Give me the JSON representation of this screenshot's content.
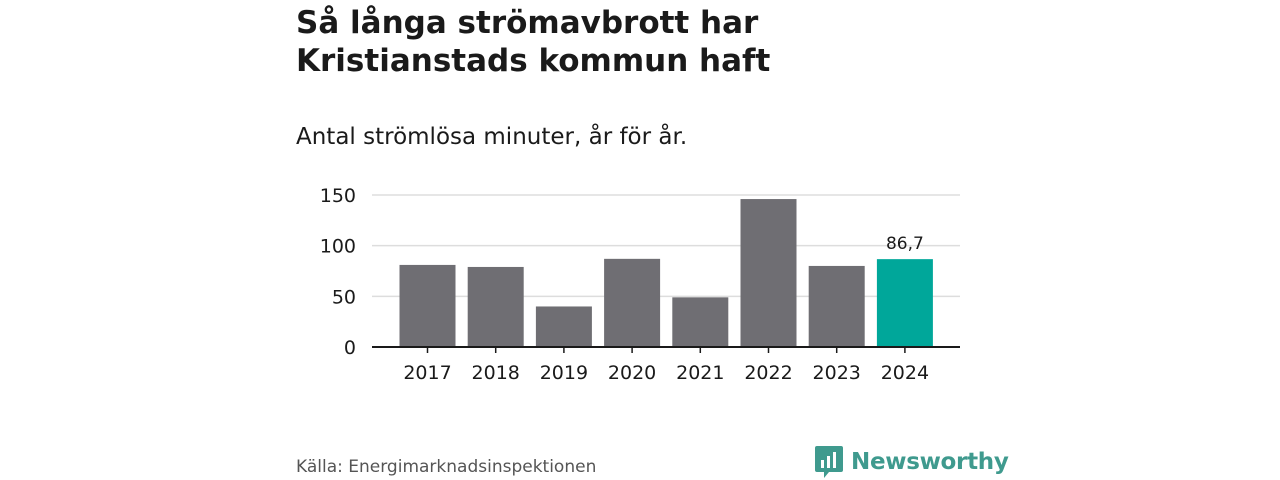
{
  "header": {
    "title": "Så långa strömavbrott har Kristianstads kommun haft",
    "subtitle": "Antal strömlösa minuter, år för år."
  },
  "chart_data": {
    "type": "bar",
    "categories": [
      "2017",
      "2018",
      "2019",
      "2020",
      "2021",
      "2022",
      "2023",
      "2024"
    ],
    "values": [
      81,
      79,
      40,
      87,
      49,
      146,
      80,
      86.7
    ],
    "highlight_index": 7,
    "data_labels": {
      "7": "86,7"
    },
    "yticks": [
      0,
      50,
      100,
      150
    ],
    "ylim": [
      0,
      150
    ],
    "xlabel": "",
    "ylabel": "",
    "grid": true,
    "colors": {
      "bar": "#6f6e73",
      "highlight": "#00a79a",
      "grid": "#dddddd",
      "axis": "#1a1a1a"
    }
  },
  "footer": {
    "source": "Källa: Energimarknadsinspektionen",
    "brand": "Newsworthy",
    "brand_icon": "bar-chart-speech-icon",
    "brand_color": "#3f9a8e"
  }
}
